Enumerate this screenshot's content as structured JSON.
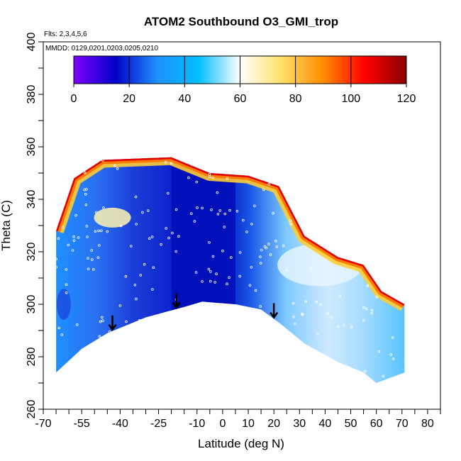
{
  "chart_data": {
    "type": "heatmap",
    "title": "ATOM2 Southbound O3_GMI_trop",
    "subtitle_lines": [
      "Flts: 2,3,4,5,6",
      "MMDD: 0129,0201,0203,0205,0210"
    ],
    "xlabel": "Latitude (deg N)",
    "ylabel": "Theta (C)",
    "xlim": [
      -70,
      85
    ],
    "ylim": [
      260,
      400
    ],
    "x_tick_labels": [
      "-70",
      "-55",
      "-40",
      "-25",
      "-10",
      "0",
      "10",
      "20",
      "30",
      "40",
      "50",
      "60",
      "70",
      "80"
    ],
    "y_tick_labels": [
      "260",
      "280",
      "300",
      "320",
      "340",
      "360",
      "380",
      "400"
    ],
    "colorbar": {
      "min": 0,
      "max": 120,
      "tick_labels": [
        "0",
        "20",
        "40",
        "60",
        "80",
        "100",
        "120"
      ],
      "colors": [
        "#7f00ff",
        "#0000c8",
        "#1e90ff",
        "#00bfff",
        "#ffffff",
        "#ffe066",
        "#ff8c00",
        "#ff0000",
        "#8b0000"
      ]
    },
    "arrows_latitude": [
      -43,
      -18,
      20
    ],
    "field_description_values": {
      "upper_edge_theta": [
        [
          -65,
          328
        ],
        [
          -58,
          348
        ],
        [
          -47,
          355
        ],
        [
          -20,
          356
        ],
        [
          -5,
          350
        ],
        [
          10,
          349
        ],
        [
          22,
          345
        ],
        [
          32,
          326
        ],
        [
          45,
          318
        ],
        [
          55,
          315
        ],
        [
          62,
          305
        ],
        [
          71,
          300
        ]
      ],
      "lower_edge_theta": [
        [
          -65,
          274
        ],
        [
          -55,
          283
        ],
        [
          -45,
          289
        ],
        [
          -30,
          295
        ],
        [
          -15,
          299
        ],
        [
          -8,
          301
        ],
        [
          5,
          300
        ],
        [
          15,
          298
        ],
        [
          22,
          293
        ],
        [
          32,
          285
        ],
        [
          45,
          278
        ],
        [
          55,
          274
        ],
        [
          60,
          270
        ],
        [
          71,
          274
        ]
      ],
      "low_o3_core_lat": [
        -20,
        5
      ],
      "high_o3_lat": [
        -47,
        10,
        62
      ]
    }
  }
}
